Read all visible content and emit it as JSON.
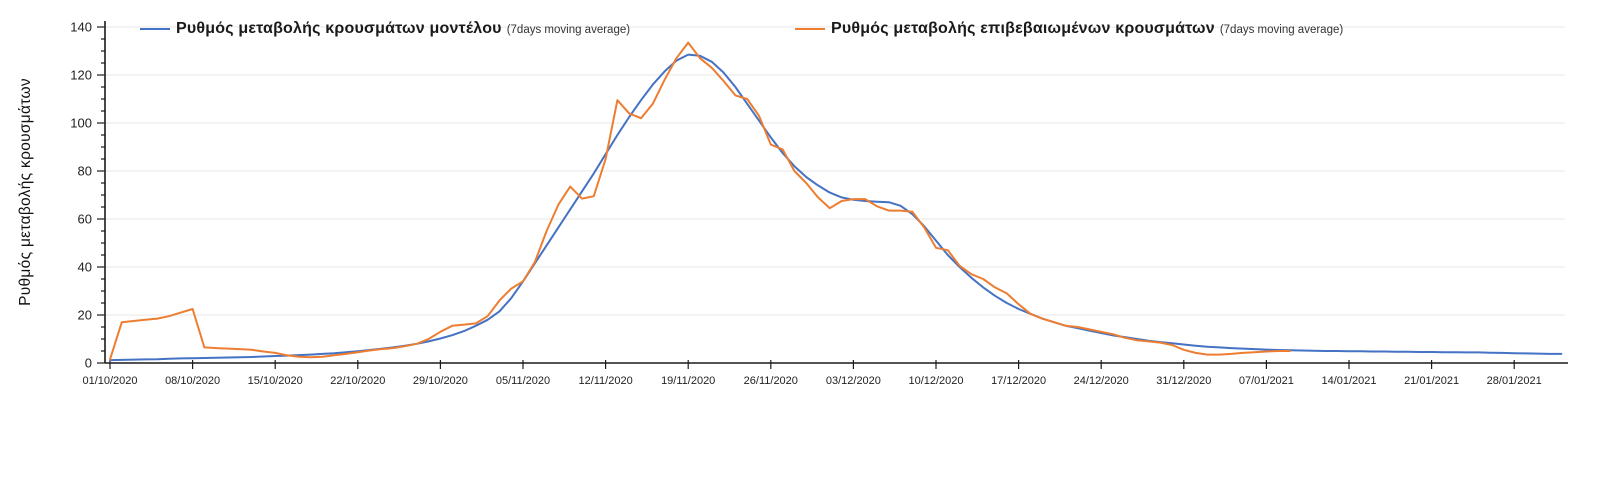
{
  "legend": {
    "items": [
      {
        "id": "model",
        "label": "Ρυθμός μεταβολής κρουσμάτων μοντέλου",
        "sub_label": "(7days moving average)",
        "color": "#4472C4"
      },
      {
        "id": "confirmed",
        "label": "Ρυθμός μεταβολής επιβεβαιωμένων κρουσμάτων",
        "sub_label": "(7days moving average)",
        "color": "#ED7D31"
      }
    ]
  },
  "y_axis": {
    "title": "Ρυθμός μεταβολής κρουσμάτων",
    "tick_labels": [
      "0",
      "20",
      "40",
      "60",
      "80",
      "100",
      "120",
      "140"
    ]
  },
  "x_axis": {
    "tick_labels": [
      "01/10/2020",
      "08/10/2020",
      "15/10/2020",
      "22/10/2020",
      "29/10/2020",
      "05/11/2020",
      "12/11/2020",
      "19/11/2020",
      "26/11/2020",
      "03/12/2020",
      "10/12/2020",
      "17/12/2020",
      "24/12/2020",
      "31/12/2020",
      "07/01/2021",
      "14/01/2021",
      "21/01/2021",
      "28/01/2021"
    ]
  },
  "chart_data": {
    "type": "line",
    "title": "",
    "xlabel": "",
    "ylabel": "Ρυθμός μεταβολής κρουσμάτων",
    "ylim": [
      0,
      140
    ],
    "y_ticks": [
      0,
      20,
      40,
      60,
      80,
      100,
      120,
      140
    ],
    "grid": "horizontal",
    "legend_position": "top",
    "x_start_date": "01/10/2020",
    "x_interval": "daily",
    "x_tick_dates": [
      "01/10/2020",
      "08/10/2020",
      "15/10/2020",
      "22/10/2020",
      "29/10/2020",
      "05/11/2020",
      "12/11/2020",
      "19/11/2020",
      "26/11/2020",
      "03/12/2020",
      "10/12/2020",
      "17/12/2020",
      "24/12/2020",
      "31/12/2020",
      "07/01/2021",
      "14/01/2021",
      "21/01/2021",
      "28/01/2021"
    ],
    "series": [
      {
        "name": "Ρυθμός μεταβολής κρουσμάτων μοντέλου (7days moving average)",
        "color": "#4472C4",
        "start_date": "01/10/2020",
        "end_date": "01/02/2021",
        "values": [
          1.2,
          1.3,
          1.4,
          1.5,
          1.6,
          1.8,
          1.9,
          2.0,
          2.1,
          2.2,
          2.3,
          2.4,
          2.5,
          2.7,
          2.9,
          3.1,
          3.3,
          3.5,
          3.8,
          4.1,
          4.5,
          4.9,
          5.4,
          5.9,
          6.5,
          7.2,
          8.0,
          9.0,
          10.2,
          11.6,
          13.3,
          15.5,
          18,
          21.5,
          27,
          34,
          41.5,
          49,
          56.5,
          64,
          71.5,
          79,
          87,
          95,
          102.5,
          109.5,
          116,
          121.5,
          126,
          128.5,
          128,
          125.5,
          121,
          115,
          108,
          101,
          94,
          87.5,
          82,
          77.5,
          74,
          71,
          69,
          68,
          67.5,
          67.2,
          67,
          65.5,
          62,
          57,
          51,
          45,
          40,
          35.5,
          31.5,
          28,
          25,
          22.5,
          20.5,
          18.5,
          17,
          15.5,
          14.5,
          13.5,
          12.5,
          11.5,
          10.8,
          10,
          9.3,
          8.7,
          8.2,
          7.7,
          7.2,
          6.8,
          6.5,
          6.2,
          6.0,
          5.8,
          5.6,
          5.4,
          5.3,
          5.2,
          5.1,
          5.0,
          5.0,
          4.9,
          4.9,
          4.8,
          4.8,
          4.7,
          4.7,
          4.6,
          4.6,
          4.5,
          4.5,
          4.4,
          4.4,
          4.3,
          4.2,
          4.1,
          4.0,
          3.9,
          3.8,
          3.8
        ]
      },
      {
        "name": "Ρυθμός μεταβολής επιβεβαιωμένων κρουσμάτων (7days moving average)",
        "color": "#ED7D31",
        "start_date": "01/10/2020",
        "end_date": "09/01/2021",
        "values": [
          1.5,
          17,
          17.5,
          18,
          18.5,
          19.5,
          21,
          22.5,
          6.5,
          6.2,
          6.0,
          5.8,
          5.5,
          4.8,
          4.2,
          3.2,
          2.6,
          2.4,
          2.6,
          3.2,
          3.8,
          4.5,
          5.2,
          5.8,
          6.2,
          7.0,
          8.0,
          10.0,
          13.0,
          15.5,
          16.0,
          16.5,
          19.5,
          26,
          31,
          34,
          42,
          55,
          66,
          73.5,
          68.5,
          69.5,
          85,
          109.5,
          104,
          102,
          108,
          118,
          127,
          133.5,
          127,
          123,
          117.5,
          111.5,
          110,
          103,
          91,
          89,
          80,
          75,
          69,
          64.5,
          67.5,
          68.3,
          68.3,
          65.3,
          63.5,
          63.5,
          63,
          56.5,
          48,
          47,
          40.5,
          37,
          35,
          31.5,
          29,
          24.5,
          20.5,
          18.5,
          17,
          15.5,
          15,
          14,
          13,
          12,
          10.5,
          9.5,
          9,
          8.5,
          7.5,
          5.5,
          4.2,
          3.5,
          3.5,
          3.8,
          4.2,
          4.5,
          4.8,
          5,
          5
        ]
      }
    ]
  }
}
